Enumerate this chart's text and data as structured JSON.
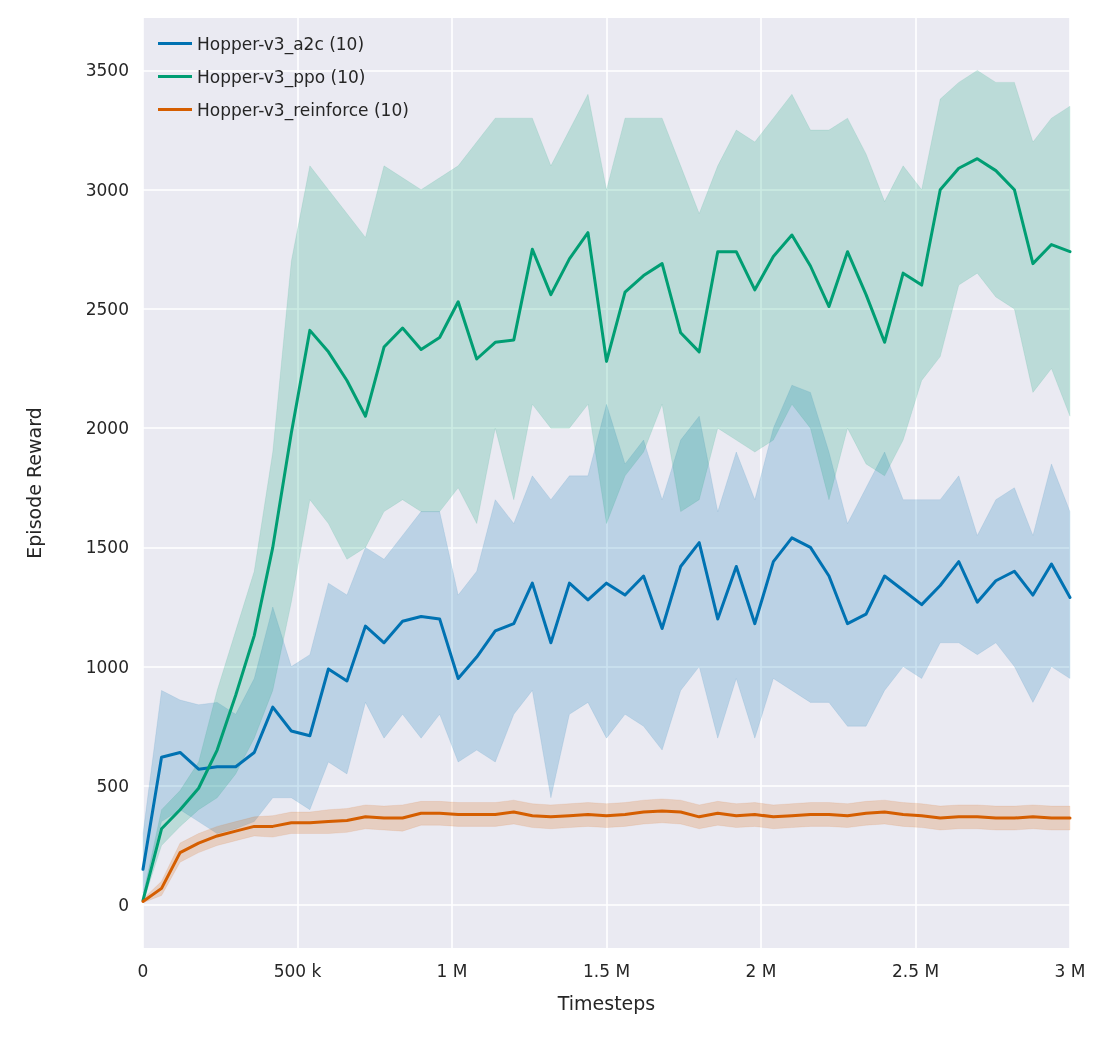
{
  "chart_data": {
    "type": "line",
    "xlabel": "Timesteps",
    "ylabel": "Episode Reward",
    "x": [
      0,
      60000,
      120000,
      180000,
      240000,
      300000,
      360000,
      420000,
      480000,
      540000,
      600000,
      660000,
      720000,
      780000,
      840000,
      900000,
      960000,
      1020000,
      1080000,
      1140000,
      1200000,
      1260000,
      1320000,
      1380000,
      1440000,
      1500000,
      1560000,
      1620000,
      1680000,
      1740000,
      1800000,
      1860000,
      1920000,
      1980000,
      2040000,
      2100000,
      2160000,
      2220000,
      2280000,
      2340000,
      2400000,
      2460000,
      2520000,
      2580000,
      2640000,
      2700000,
      2760000,
      2820000,
      2880000,
      2940000,
      3000000
    ],
    "series": [
      {
        "name": "Hopper-v3_a2c (10)",
        "color": "#0072b2",
        "values": [
          150,
          620,
          640,
          570,
          580,
          580,
          640,
          830,
          730,
          710,
          990,
          940,
          1170,
          1100,
          1190,
          1210,
          1200,
          950,
          1040,
          1150,
          1180,
          1350,
          1100,
          1350,
          1280,
          1350,
          1300,
          1380,
          1160,
          1420,
          1520,
          1200,
          1420,
          1180,
          1440,
          1540,
          1500,
          1380,
          1180,
          1220,
          1380,
          1320,
          1260,
          1340,
          1440,
          1270,
          1360,
          1400,
          1300,
          1430,
          1290
        ],
        "lower": [
          50,
          350,
          400,
          350,
          300,
          320,
          350,
          450,
          450,
          400,
          600,
          550,
          850,
          700,
          800,
          700,
          800,
          600,
          650,
          600,
          800,
          900,
          450,
          800,
          850,
          700,
          800,
          750,
          650,
          900,
          1000,
          700,
          950,
          700,
          950,
          900,
          850,
          850,
          750,
          750,
          900,
          1000,
          950,
          1100,
          1100,
          1050,
          1100,
          1000,
          850,
          1000,
          950
        ],
        "upper": [
          300,
          900,
          860,
          840,
          850,
          800,
          950,
          1250,
          1000,
          1050,
          1350,
          1300,
          1500,
          1450,
          1550,
          1650,
          1650,
          1300,
          1400,
          1700,
          1600,
          1800,
          1700,
          1800,
          1800,
          2100,
          1850,
          1950,
          1700,
          1950,
          2050,
          1650,
          1900,
          1700,
          2000,
          2180,
          2150,
          1900,
          1600,
          1750,
          1900,
          1700,
          1700,
          1700,
          1800,
          1550,
          1700,
          1750,
          1550,
          1850,
          1650
        ]
      },
      {
        "name": "Hopper-v3_ppo (10)",
        "color": "#009e73",
        "values": [
          20,
          320,
          400,
          490,
          650,
          880,
          1130,
          1500,
          1980,
          2410,
          2320,
          2200,
          2050,
          2340,
          2420,
          2330,
          2380,
          2530,
          2290,
          2360,
          2370,
          2750,
          2560,
          2710,
          2820,
          2280,
          2570,
          2640,
          2690,
          2400,
          2320,
          2740,
          2740,
          2580,
          2720,
          2810,
          2680,
          2510,
          2740,
          2560,
          2360,
          2650,
          2600,
          3000,
          3090,
          3130,
          3080,
          3000,
          2690,
          2770,
          2740
        ],
        "lower": [
          10,
          250,
          330,
          400,
          450,
          550,
          700,
          900,
          1270,
          1700,
          1600,
          1450,
          1500,
          1650,
          1700,
          1650,
          1650,
          1750,
          1600,
          2000,
          1700,
          2100,
          2000,
          2000,
          2100,
          1600,
          1800,
          1900,
          2100,
          1650,
          1700,
          2000,
          1950,
          1900,
          1950,
          2100,
          2000,
          1700,
          2000,
          1850,
          1800,
          1950,
          2200,
          2300,
          2600,
          2650,
          2550,
          2500,
          2150,
          2250,
          2050
        ],
        "upper": [
          40,
          400,
          480,
          600,
          900,
          1150,
          1400,
          1900,
          2700,
          3100,
          3000,
          2900,
          2800,
          3100,
          3050,
          3000,
          3050,
          3100,
          3200,
          3300,
          3300,
          3300,
          3100,
          3250,
          3400,
          3000,
          3300,
          3300,
          3300,
          3100,
          2900,
          3100,
          3250,
          3200,
          3300,
          3400,
          3250,
          3250,
          3300,
          3150,
          2950,
          3100,
          3000,
          3380,
          3450,
          3500,
          3450,
          3450,
          3200,
          3300,
          3350
        ]
      },
      {
        "name": "Hopper-v3_reinforce (10)",
        "color": "#d55e00",
        "values": [
          15,
          70,
          220,
          260,
          290,
          310,
          330,
          330,
          345,
          345,
          350,
          355,
          370,
          365,
          365,
          385,
          385,
          380,
          380,
          380,
          390,
          375,
          370,
          375,
          380,
          375,
          380,
          390,
          395,
          390,
          370,
          385,
          375,
          380,
          370,
          375,
          380,
          380,
          375,
          385,
          390,
          380,
          375,
          365,
          370,
          370,
          365,
          365,
          370,
          365,
          365
        ],
        "lower": [
          10,
          40,
          180,
          220,
          250,
          270,
          290,
          285,
          300,
          300,
          300,
          305,
          320,
          315,
          310,
          335,
          335,
          330,
          330,
          330,
          340,
          325,
          320,
          325,
          330,
          325,
          330,
          340,
          345,
          340,
          320,
          335,
          325,
          330,
          320,
          325,
          330,
          330,
          325,
          335,
          340,
          330,
          325,
          315,
          320,
          320,
          315,
          315,
          320,
          315,
          315
        ],
        "upper": [
          25,
          100,
          260,
          300,
          330,
          350,
          370,
          375,
          390,
          390,
          400,
          405,
          420,
          415,
          420,
          435,
          435,
          430,
          430,
          430,
          440,
          425,
          420,
          425,
          430,
          425,
          430,
          440,
          445,
          440,
          420,
          435,
          425,
          430,
          420,
          425,
          430,
          430,
          425,
          435,
          440,
          430,
          425,
          415,
          420,
          420,
          415,
          415,
          420,
          415,
          415
        ]
      }
    ],
    "xlim": [
      0,
      3000000
    ],
    "xticks": [
      0,
      {
        "value": 500000,
        "label": "500 k"
      },
      {
        "value": 1000000,
        "label": "1 M"
      },
      {
        "value": 1500000,
        "label": "1.5 M"
      },
      {
        "value": 2000000,
        "label": "2 M"
      },
      {
        "value": 2500000,
        "label": "2.5 M"
      },
      {
        "value": 3000000,
        "label": "3 M"
      }
    ],
    "ylim": [
      -180,
      3720
    ],
    "yticks": [
      0,
      500,
      1000,
      1500,
      2000,
      2500,
      3000,
      3500
    ],
    "grid": true,
    "legend": "top left",
    "line_style": "solid"
  }
}
